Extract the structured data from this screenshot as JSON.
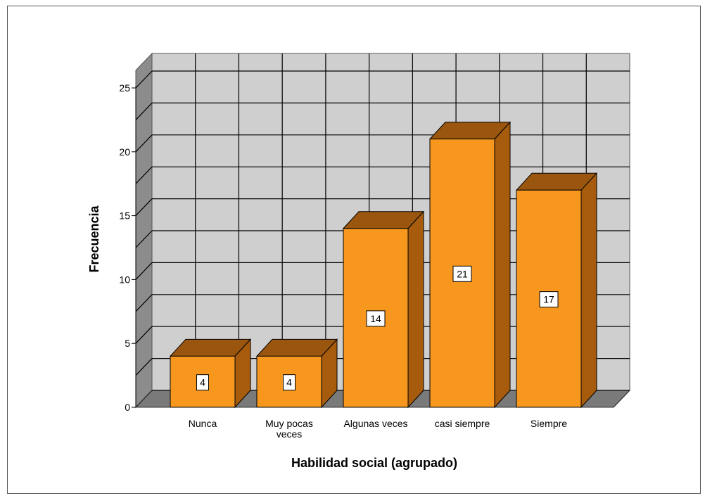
{
  "chart_data": {
    "type": "bar",
    "title": "",
    "xlabel": "Habilidad social (agrupado)",
    "ylabel": "Frecuencia",
    "categories": [
      [
        "Nunca"
      ],
      [
        "Muy pocas",
        "veces"
      ],
      [
        "Algunas veces"
      ],
      [
        "casi siempre"
      ],
      [
        "Siempre"
      ]
    ],
    "values": [
      4,
      4,
      14,
      21,
      17
    ],
    "ylim": [
      0,
      25
    ],
    "yticks": [
      0,
      5,
      10,
      15,
      20,
      25
    ],
    "grid": true,
    "style": "3d",
    "colors": {
      "bar_front": "#F7971E",
      "bar_side": "#A65C0C",
      "bar_top": "#9A560E",
      "wall": "#CFCFCF",
      "side_wall": "#8C8C8C",
      "floor": "#7A7A7A",
      "grid": "#000000",
      "frame": "#555555"
    }
  }
}
